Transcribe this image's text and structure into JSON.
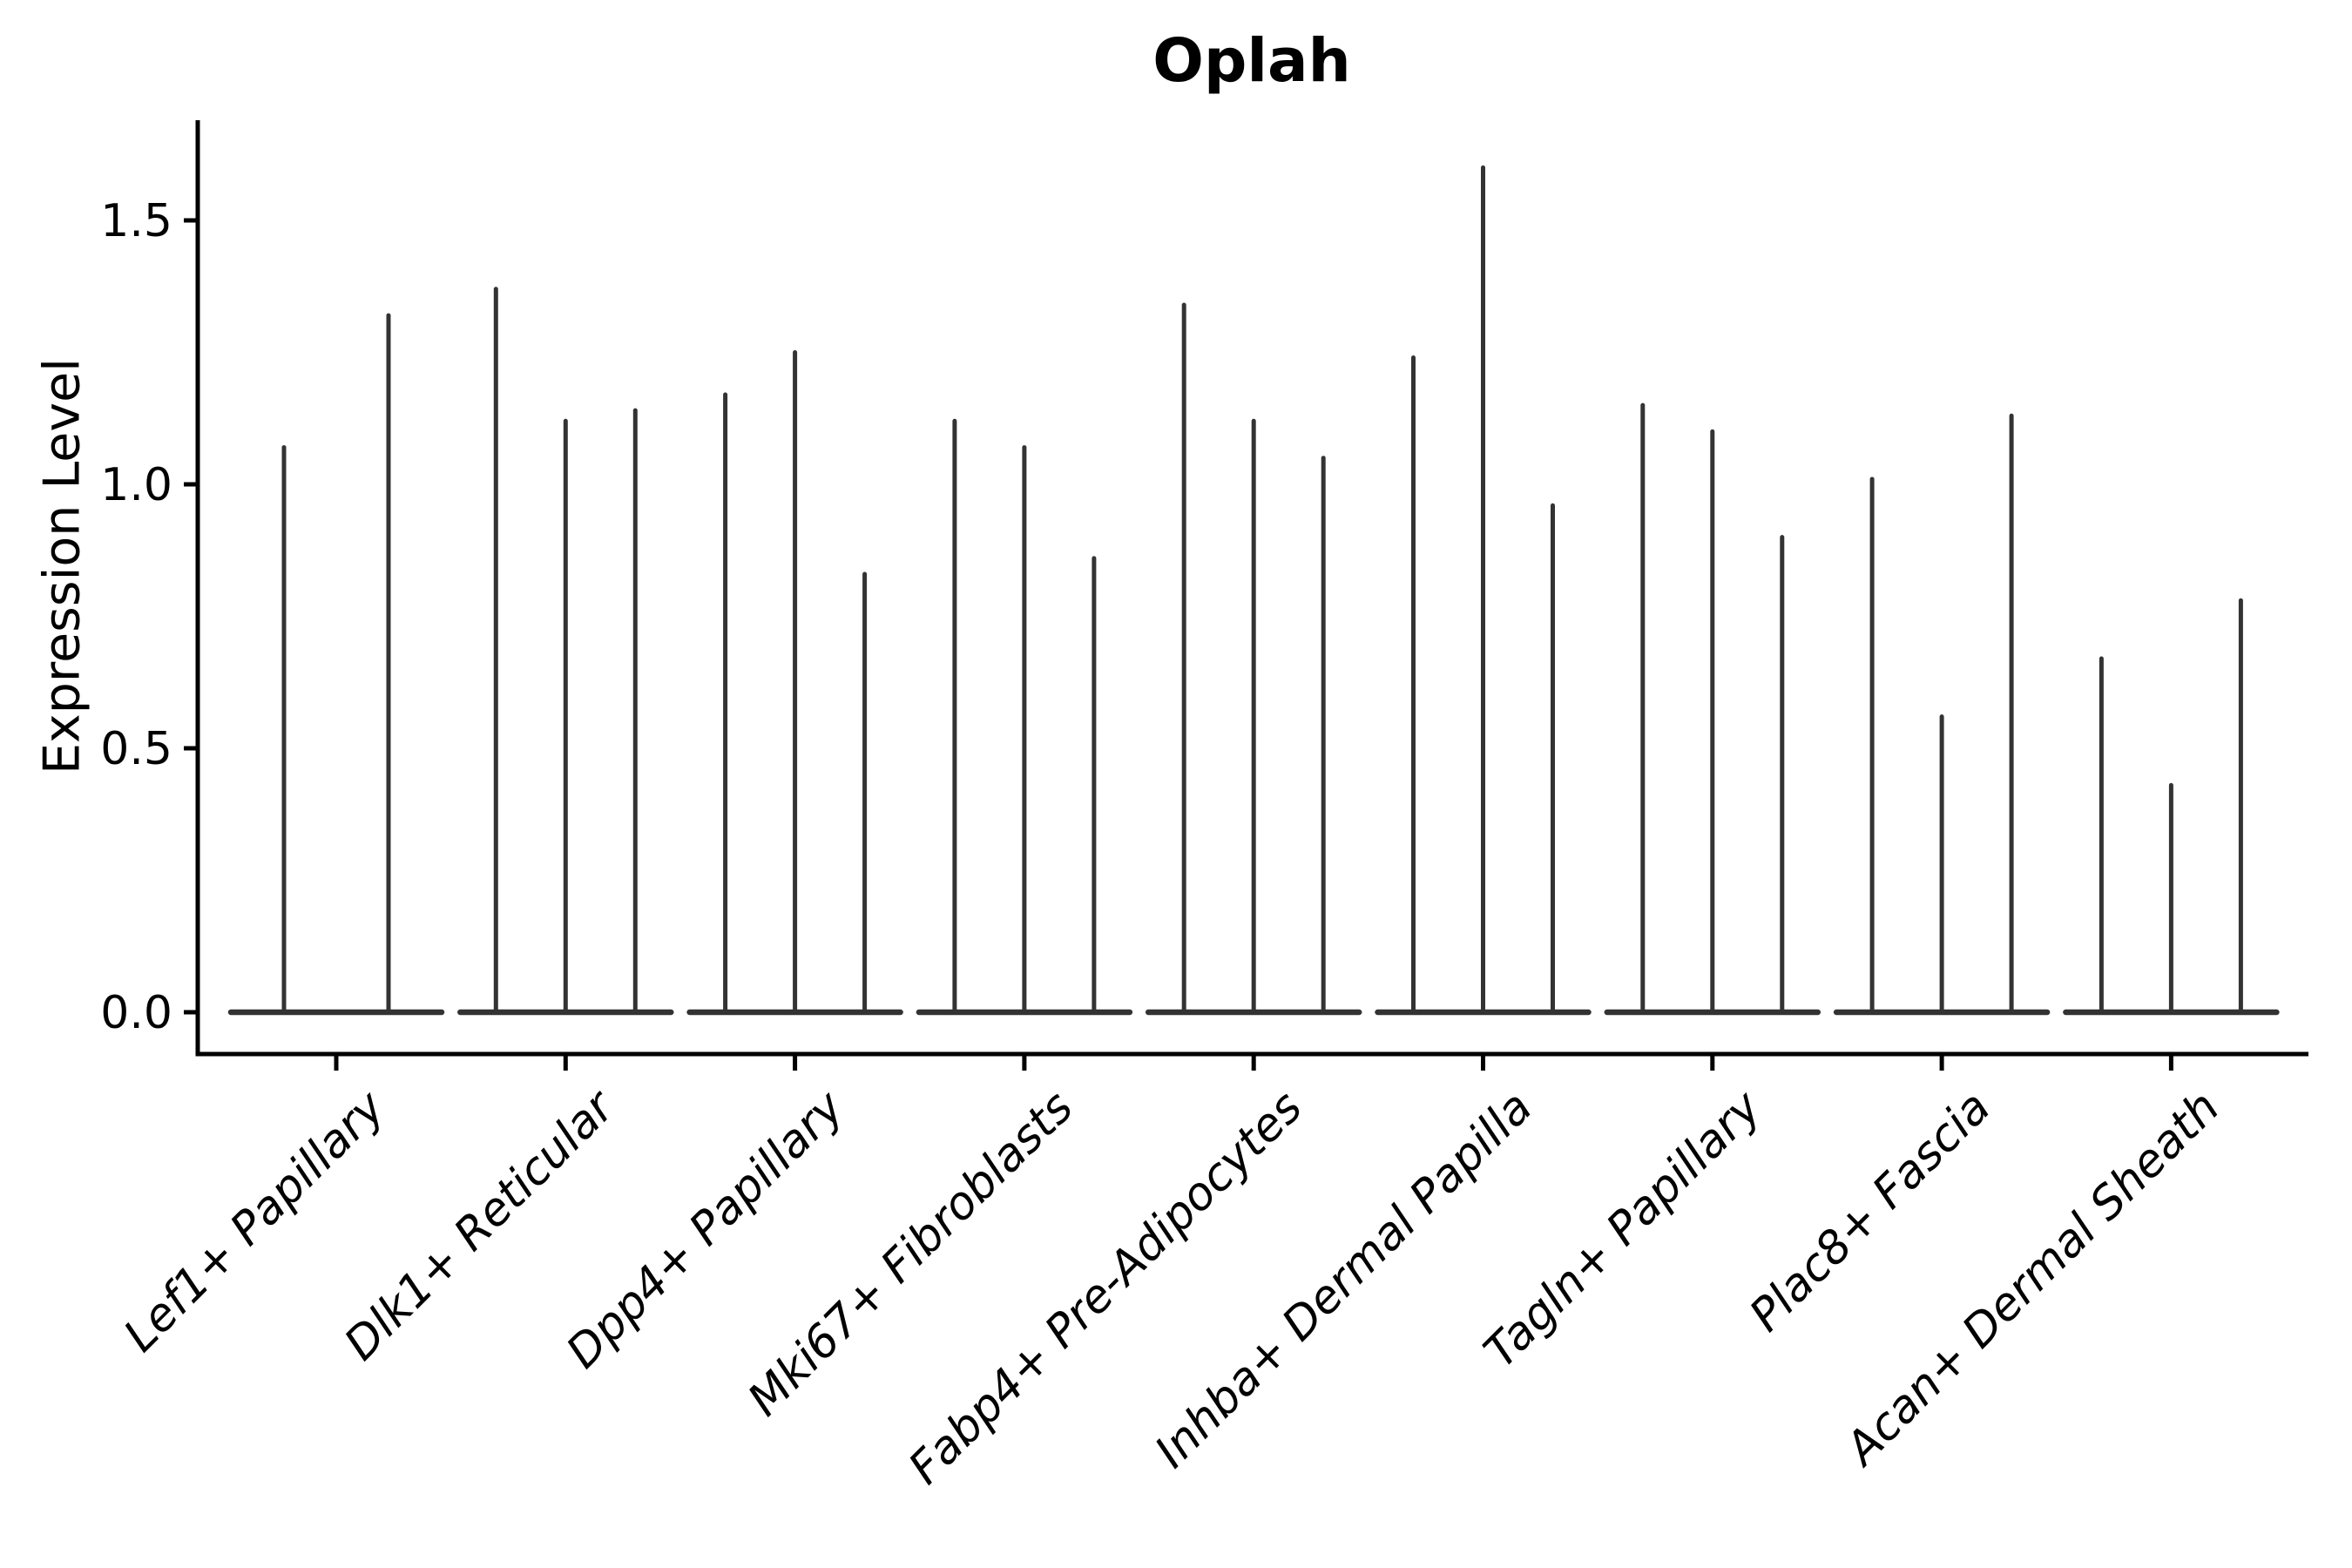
{
  "chart_data": {
    "type": "violin",
    "style": "needle-violin (thin spikes rising from a flat base at 0, no fill)",
    "title": "Oplah",
    "xlabel": "",
    "ylabel": "Expression Level",
    "grid": false,
    "legend": "none",
    "ylim": [
      -0.08,
      1.69
    ],
    "ytick_values": [
      0.0,
      0.5,
      1.0,
      1.5
    ],
    "ytick_labels": [
      "0.0",
      "0.5",
      "1.0",
      "1.5"
    ],
    "categories": [
      "Lef1+ Papillary",
      "Dlk1+ Reticular",
      "Dpp4+ Papillary",
      "Mki67+ Fibroblasts",
      "Fabp4+ Pre-Adipocytes",
      "Inhba+ Dermal Papilla",
      "Tagln+ Papillary",
      "Plac8+ Fascia",
      "Acan+ Dermal Sheath"
    ],
    "groups": [
      {
        "label": "Lef1+ Papillary",
        "spike_max_values": [
          1.07,
          1.32
        ]
      },
      {
        "label": "Dlk1+ Reticular",
        "spike_max_values": [
          1.37,
          1.12,
          1.14
        ]
      },
      {
        "label": "Dpp4+ Papillary",
        "spike_max_values": [
          1.17,
          1.25,
          0.83
        ]
      },
      {
        "label": "Mki67+ Fibroblasts",
        "spike_max_values": [
          1.12,
          1.07,
          0.86
        ]
      },
      {
        "label": "Fabp4+ Pre-Adipocytes",
        "spike_max_values": [
          1.34,
          1.12,
          1.05
        ]
      },
      {
        "label": "Inhba+ Dermal Papilla",
        "spike_max_values": [
          1.24,
          1.6,
          0.96
        ]
      },
      {
        "label": "Tagln+ Papillary",
        "spike_max_values": [
          1.15,
          1.1,
          0.9
        ]
      },
      {
        "label": "Plac8+ Fascia",
        "spike_max_values": [
          1.01,
          0.56,
          1.13
        ]
      },
      {
        "label": "Acan+ Dermal Sheath",
        "spike_max_values": [
          0.67,
          0.43,
          0.78
        ]
      }
    ],
    "colors": {
      "background": "#ffffff",
      "axis": "#000000",
      "text": "#000000",
      "violin_stroke": "#333333"
    }
  }
}
